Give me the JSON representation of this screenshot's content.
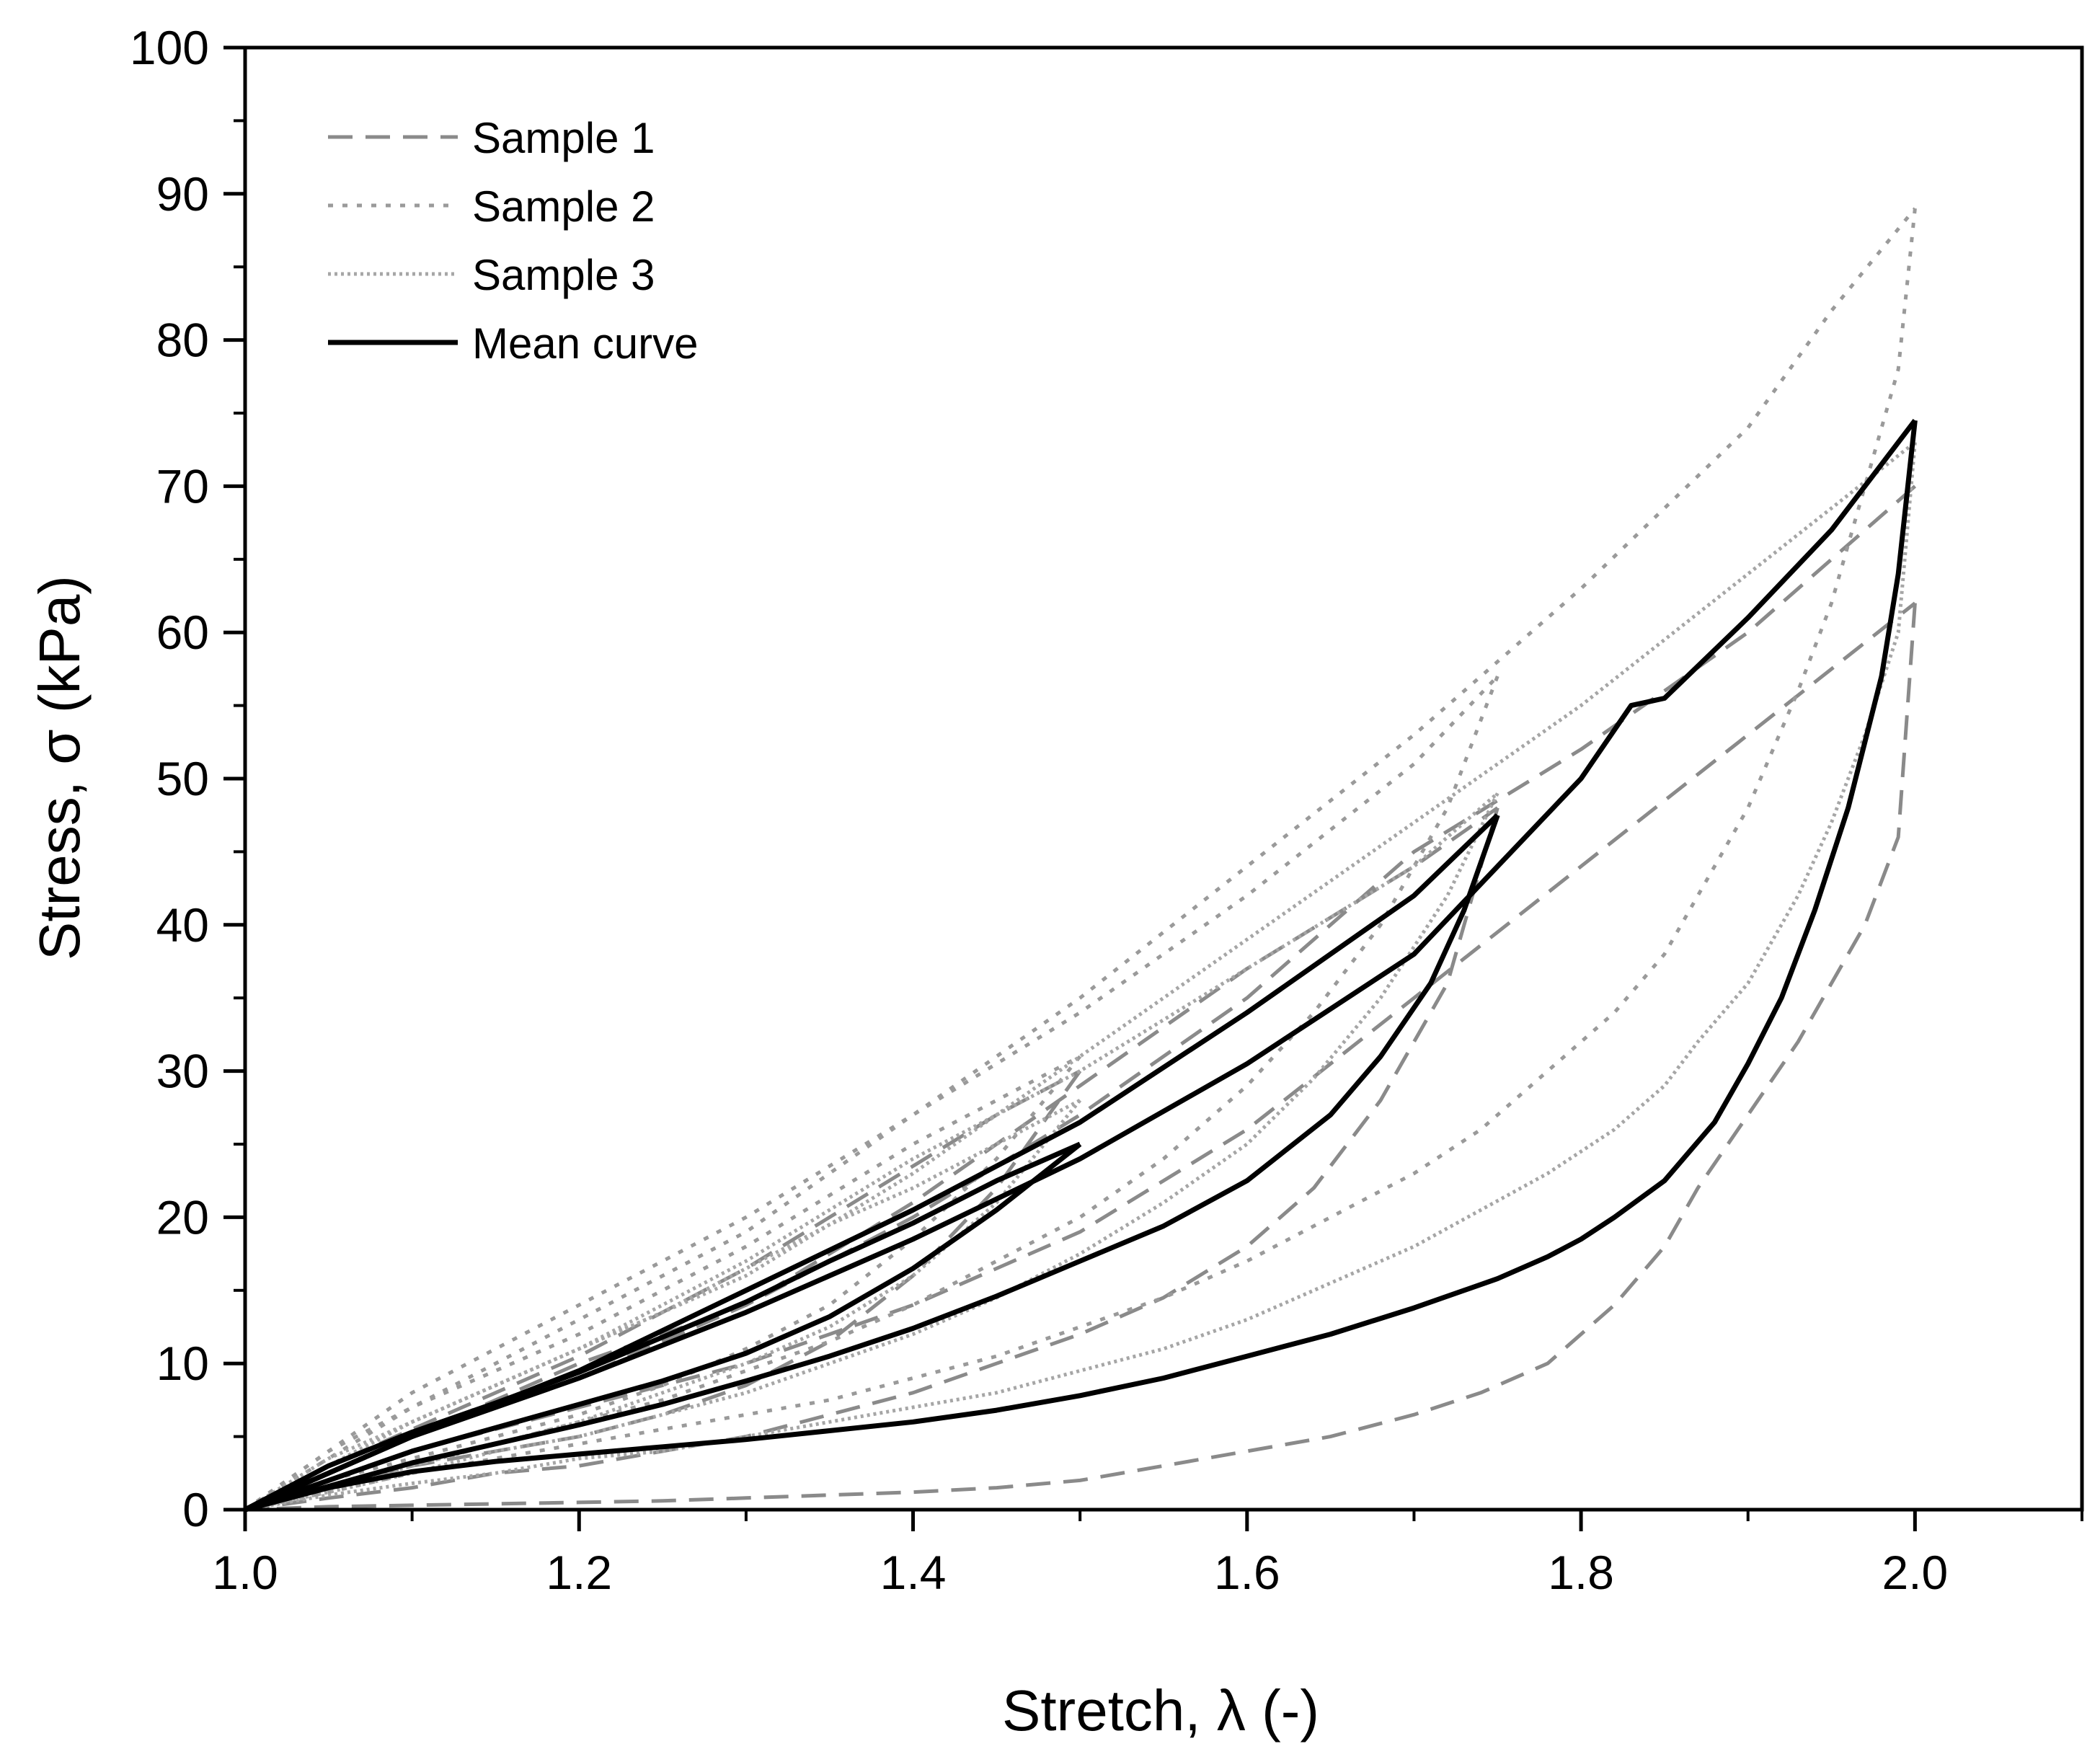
{
  "chart_data": {
    "type": "line",
    "title": "",
    "xlabel": "Stretch, λ (-)",
    "ylabel": "Stress, σ (kPa)",
    "xlim": [
      1.0,
      2.1
    ],
    "ylim": [
      0,
      100
    ],
    "x_ticks": [
      1.0,
      1.2,
      1.4,
      1.6,
      1.8,
      2.0
    ],
    "x_tick_labels": [
      "1.0",
      "1.2",
      "1.4",
      "1.6",
      "1.8",
      "2.0"
    ],
    "y_ticks": [
      0,
      10,
      20,
      30,
      40,
      50,
      60,
      70,
      80,
      90,
      100
    ],
    "y_tick_labels": [
      "0",
      "10",
      "20",
      "30",
      "40",
      "50",
      "60",
      "70",
      "80",
      "90",
      "100"
    ],
    "legend": {
      "position": "top-left"
    },
    "series": [
      {
        "name": "Sample 1",
        "style": "dashed",
        "color": "#8a8a8a",
        "segments": [
          {
            "x": [
              1.0,
              1.05,
              1.1,
              1.15,
              1.2,
              1.25,
              1.3,
              1.35,
              1.4,
              1.45,
              1.5
            ],
            "y": [
              0,
              3,
              5.5,
              8,
              10.5,
              13.5,
              16.5,
              20,
              23.5,
              27,
              30
            ]
          },
          {
            "x": [
              1.5,
              1.45,
              1.4,
              1.35,
              1.3,
              1.25,
              1.2,
              1.15,
              1.1,
              1.05,
              1.0
            ],
            "y": [
              30,
              22,
              16,
              11.5,
              8.5,
              6.5,
              5,
              4,
              3,
              1.5,
              0
            ]
          },
          {
            "x": [
              1.0,
              1.1,
              1.2,
              1.3,
              1.4,
              1.5,
              1.6,
              1.7,
              1.75
            ],
            "y": [
              0,
              5,
              9,
              14,
              21,
              29,
              37,
              44,
              48
            ]
          },
          {
            "x": [
              1.75,
              1.72,
              1.68,
              1.64,
              1.6,
              1.55,
              1.5,
              1.45,
              1.4,
              1.35,
              1.3,
              1.25,
              1.2,
              1.15,
              1.1,
              1.05,
              1.0
            ],
            "y": [
              48,
              36,
              28,
              22,
              18,
              14.5,
              12,
              10,
              8,
              6.5,
              5,
              4,
              3,
              2.5,
              1.5,
              0.8,
              0
            ]
          },
          {
            "x": [
              1.0,
              1.1,
              1.2,
              1.3,
              1.4,
              1.5,
              1.6,
              1.7,
              1.8,
              1.9,
              2.0
            ],
            "y": [
              0,
              5,
              10,
              14,
              20,
              27,
              35,
              45,
              52,
              60,
              70
            ]
          },
          {
            "x": [
              2.0,
              1.99,
              1.97,
              1.95,
              1.93,
              1.9,
              1.87,
              1.85,
              1.82,
              1.78,
              1.74,
              1.7,
              1.65,
              1.6,
              1.55,
              1.5,
              1.45,
              1.4,
              1.35,
              1.3,
              1.25,
              1.2,
              1.15,
              1.1,
              1.05,
              1.0
            ],
            "y": [
              62,
              46,
              40,
              36,
              32,
              27,
              22,
              18,
              14,
              10,
              8,
              6.5,
              5,
              4,
              3,
              2,
              1.5,
              1.2,
              1,
              0.8,
              0.6,
              0.5,
              0.4,
              0.3,
              0.2,
              0
            ]
          },
          {
            "x": [
              1.0,
              1.1,
              1.2,
              1.3,
              1.4,
              1.5,
              1.6,
              1.7,
              1.8,
              1.9,
              2.0
            ],
            "y": [
              0,
              4,
              7,
              10,
              14,
              19,
              26,
              35,
              44,
              53,
              62
            ]
          }
        ]
      },
      {
        "name": "Sample 2",
        "style": "dotted",
        "color": "#9a9a9a",
        "segments": [
          {
            "x": [
              1.0,
              1.05,
              1.1,
              1.15,
              1.2,
              1.25,
              1.3,
              1.35,
              1.4,
              1.45,
              1.5
            ],
            "y": [
              0,
              4,
              7,
              9.5,
              12,
              15,
              18,
              21.5,
              25,
              28,
              31
            ]
          },
          {
            "x": [
              1.5,
              1.45,
              1.4,
              1.35,
              1.3,
              1.25,
              1.2,
              1.15,
              1.1,
              1.05,
              1.0
            ],
            "y": [
              31,
              24,
              18.5,
              14,
              11,
              8.5,
              6.5,
              5,
              3.5,
              2,
              0
            ]
          },
          {
            "x": [
              1.0,
              1.1,
              1.2,
              1.3,
              1.4,
              1.5,
              1.6,
              1.7,
              1.75
            ],
            "y": [
              0,
              7,
              13,
              19,
              27,
              34,
              42,
              51,
              57
            ]
          },
          {
            "x": [
              1.75,
              1.72,
              1.68,
              1.64,
              1.6,
              1.55,
              1.5,
              1.45,
              1.4,
              1.35,
              1.3,
              1.25,
              1.2,
              1.15,
              1.1,
              1.05,
              1.0
            ],
            "y": [
              57,
              48,
              40,
              34,
              29,
              24,
              20,
              17,
              14,
              11.5,
              9.5,
              7.5,
              6,
              4.5,
              3,
              1.5,
              0
            ]
          },
          {
            "x": [
              1.0,
              1.1,
              1.2,
              1.3,
              1.4,
              1.5,
              1.6,
              1.7,
              1.8,
              1.9,
              1.95,
              2.0
            ],
            "y": [
              0,
              8,
              14,
              20,
              27,
              35,
              44,
              53,
              63,
              74,
              82,
              89
            ]
          },
          {
            "x": [
              2.0,
              1.99,
              1.97,
              1.95,
              1.93,
              1.9,
              1.87,
              1.85,
              1.82,
              1.78,
              1.74,
              1.7,
              1.65,
              1.6,
              1.55,
              1.5,
              1.45,
              1.4,
              1.35,
              1.3,
              1.25,
              1.2,
              1.15,
              1.1,
              1.05,
              1.0
            ],
            "y": [
              89,
              78,
              70,
              62,
              56,
              48,
              42,
              38,
              34,
              30,
              26,
              23,
              20,
              17,
              14.5,
              12.5,
              10.5,
              9,
              7.5,
              6.5,
              5.5,
              4.5,
              3.5,
              2.5,
              1.2,
              0
            ]
          }
        ]
      },
      {
        "name": "Sample 3",
        "style": "dotted-fine",
        "color": "#a6a6a6",
        "segments": [
          {
            "x": [
              1.0,
              1.05,
              1.1,
              1.15,
              1.2,
              1.25,
              1.3,
              1.35,
              1.4,
              1.45,
              1.5
            ],
            "y": [
              0,
              3.5,
              6,
              8.5,
              11,
              13.5,
              16.5,
              19.5,
              22,
              25,
              28
            ]
          },
          {
            "x": [
              1.5,
              1.45,
              1.4,
              1.35,
              1.3,
              1.25,
              1.2,
              1.15,
              1.1,
              1.05,
              1.0
            ],
            "y": [
              28,
              21,
              16,
              12.5,
              10,
              8,
              6,
              4.5,
              3,
              1.5,
              0
            ]
          },
          {
            "x": [
              1.0,
              1.1,
              1.2,
              1.3,
              1.4,
              1.5,
              1.6,
              1.7,
              1.75
            ],
            "y": [
              0,
              6,
              11,
              17,
              24,
              30,
              37,
              44,
              49
            ]
          },
          {
            "x": [
              1.75,
              1.72,
              1.68,
              1.64,
              1.6,
              1.55,
              1.5,
              1.45,
              1.4,
              1.35,
              1.3,
              1.25,
              1.2,
              1.15,
              1.1,
              1.05,
              1.0
            ],
            "y": [
              49,
              42,
              35,
              29.5,
              25,
              21,
              17.5,
              14.5,
              12,
              10,
              8,
              6.5,
              5,
              4,
              2.5,
              1.2,
              0
            ]
          },
          {
            "x": [
              1.0,
              1.1,
              1.2,
              1.3,
              1.4,
              1.5,
              1.6,
              1.7,
              1.8,
              1.9,
              2.0
            ],
            "y": [
              0,
              6,
              11,
              16,
              23,
              31,
              39,
              47,
              55,
              64,
              73
            ]
          },
          {
            "x": [
              2.0,
              1.99,
              1.97,
              1.95,
              1.93,
              1.9,
              1.87,
              1.85,
              1.82,
              1.78,
              1.74,
              1.7,
              1.65,
              1.6,
              1.55,
              1.5,
              1.45,
              1.4,
              1.35,
              1.3,
              1.25,
              1.2,
              1.15,
              1.1,
              1.05,
              1.0
            ],
            "y": [
              73,
              60,
              53,
              47,
              42,
              36,
              32,
              29,
              26,
              23,
              20.5,
              18,
              15.5,
              13,
              11,
              9.5,
              8,
              7,
              6,
              5,
              4,
              3.5,
              2.5,
              1.8,
              1,
              0
            ]
          }
        ]
      },
      {
        "name": "Mean curve",
        "style": "solid",
        "color": "#000000",
        "segments": [
          {
            "x": [
              1.0,
              1.05,
              1.1,
              1.15,
              1.2,
              1.25,
              1.3,
              1.35,
              1.4,
              1.45,
              1.5
            ],
            "y": [
              0,
              3,
              5.3,
              7.3,
              9.4,
              11.8,
              14.2,
              17,
              19.6,
              22.5,
              25
            ]
          },
          {
            "x": [
              1.5,
              1.45,
              1.4,
              1.35,
              1.3,
              1.25,
              1.2,
              1.15,
              1.1,
              1.05,
              1.0
            ],
            "y": [
              25,
              20.5,
              16.5,
              13.2,
              10.7,
              8.8,
              7.2,
              5.6,
              4,
              2,
              0
            ]
          },
          {
            "x": [
              1.0,
              1.1,
              1.2,
              1.3,
              1.4,
              1.5,
              1.6,
              1.65,
              1.7,
              1.75
            ],
            "y": [
              0,
              5,
              9.5,
              15,
              20.5,
              26.5,
              34,
              38,
              42,
              47.5
            ]
          },
          {
            "x": [
              1.75,
              1.73,
              1.71,
              1.68,
              1.65,
              1.6,
              1.55,
              1.5,
              1.45,
              1.4,
              1.35,
              1.3,
              1.25,
              1.2,
              1.15,
              1.1,
              1.05,
              1.0
            ],
            "y": [
              47.5,
              41,
              36,
              31,
              27,
              22.5,
              19.4,
              17,
              14.6,
              12.4,
              10.5,
              8.8,
              7.2,
              5.8,
              4.5,
              3.2,
              1.6,
              0
            ]
          },
          {
            "x": [
              1.0,
              1.1,
              1.2,
              1.3,
              1.4,
              1.5,
              1.6,
              1.7,
              1.75,
              1.8,
              1.83,
              1.85,
              1.9,
              1.95,
              2.0
            ],
            "y": [
              0,
              5,
              9,
              13.5,
              18.5,
              24,
              30.5,
              38,
              44,
              50,
              55,
              55.5,
              61,
              67,
              74.5
            ]
          },
          {
            "x": [
              2.0,
              1.99,
              1.98,
              1.96,
              1.94,
              1.92,
              1.9,
              1.88,
              1.85,
              1.82,
              1.8,
              1.78,
              1.75,
              1.7,
              1.65,
              1.6,
              1.55,
              1.5,
              1.45,
              1.4,
              1.35,
              1.3,
              1.25,
              1.2,
              1.15,
              1.1,
              1.05,
              1.0
            ],
            "y": [
              74.5,
              64,
              57,
              48,
              41,
              35,
              30.5,
              26.5,
              22.5,
              20,
              18.5,
              17.3,
              15.8,
              13.8,
              12,
              10.5,
              9,
              7.8,
              6.8,
              6,
              5.4,
              4.8,
              4.3,
              3.8,
              3.3,
              2.6,
              1.5,
              0
            ]
          }
        ]
      }
    ]
  }
}
